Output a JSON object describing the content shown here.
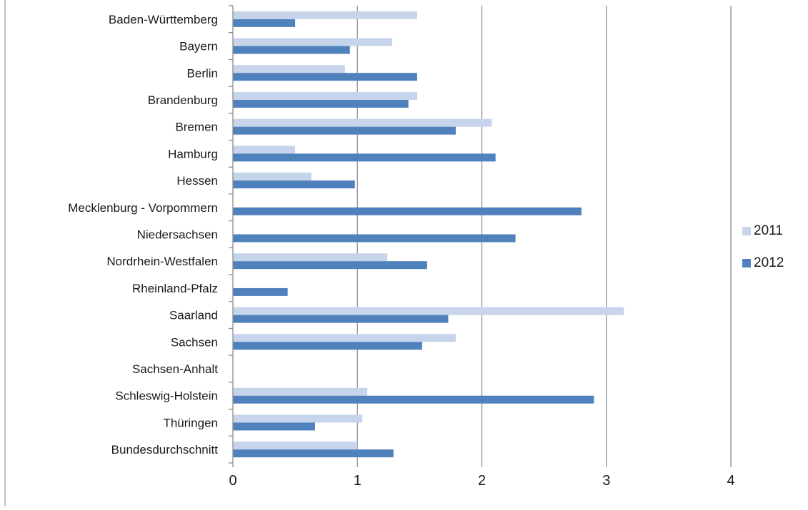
{
  "chart_data": {
    "type": "bar",
    "orientation": "horizontal",
    "categories": [
      "Baden-Württemberg",
      "Bayern",
      "Berlin",
      "Brandenburg",
      "Bremen",
      "Hamburg",
      "Hessen",
      "Mecklenburg - Vorpommern",
      "Niedersachsen",
      "Nordrhein-Westfalen",
      "Rheinland-Pfalz",
      "Saarland",
      "Sachsen",
      "Sachsen-Anhalt",
      "Schleswig-Holstein",
      "Thüringen",
      "Bundesdurchschnitt"
    ],
    "series": [
      {
        "name": "2011",
        "color": "#c6d5ec",
        "values": [
          1.48,
          1.28,
          0.9,
          1.48,
          2.08,
          0.5,
          0.63,
          0,
          0,
          1.24,
          0,
          3.14,
          1.79,
          0,
          1.08,
          1.04,
          1.0
        ]
      },
      {
        "name": "2012",
        "color": "#4f81bd",
        "values": [
          0.5,
          0.94,
          1.48,
          1.41,
          1.79,
          2.11,
          0.98,
          2.8,
          2.27,
          1.56,
          0.44,
          1.73,
          1.52,
          0,
          2.9,
          0.66,
          1.29
        ]
      }
    ],
    "xlim": [
      0,
      4
    ],
    "xticks": [
      "0",
      "1",
      "2",
      "3",
      "4"
    ],
    "title": "",
    "xlabel": "",
    "ylabel": "",
    "grid": true,
    "legend_position": "right",
    "gridline_color": "#8c8c8c",
    "axis_color": "#8c8c8c"
  }
}
